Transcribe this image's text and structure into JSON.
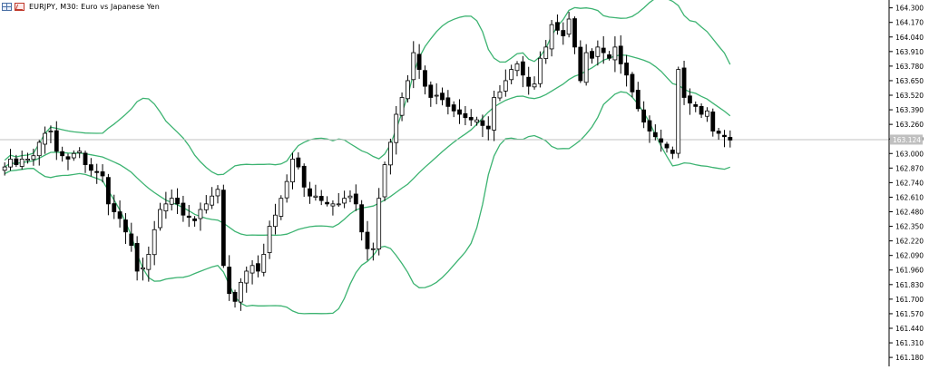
{
  "window": {
    "symbol_title": "EURJPY, M30:  Euro vs Japanese Yen",
    "icons": [
      "chart-grid-icon",
      "indicator-icon"
    ]
  },
  "colors": {
    "background": "#ffffff",
    "candle": "#000000",
    "bands": "#3cb371",
    "price_line": "#c0c0c0",
    "axis": "#000000",
    "price_label_bg": "#c0c0c0",
    "price_label_text": "#ffffff"
  },
  "chart_data": {
    "type": "candlestick",
    "indicator": "Bollinger Bands",
    "ylim": [
      161.1,
      164.37
    ],
    "y_ticks": [
      "164.300",
      "164.170",
      "164.040",
      "163.910",
      "163.780",
      "163.650",
      "163.520",
      "163.390",
      "163.260",
      "163.130",
      "163.000",
      "162.870",
      "162.740",
      "162.610",
      "162.480",
      "162.350",
      "162.220",
      "162.090",
      "161.960",
      "161.830",
      "161.700",
      "161.570",
      "161.440",
      "161.310",
      "161.180"
    ],
    "current_price": "163.124",
    "close": [
      162.88,
      162.95,
      162.9,
      162.95,
      162.95,
      162.98,
      163.1,
      163.18,
      163.2,
      163.02,
      162.98,
      162.95,
      163.0,
      163.02,
      162.9,
      162.85,
      162.83,
      162.8,
      162.55,
      162.48,
      162.42,
      162.3,
      162.18,
      161.95,
      161.98,
      162.1,
      162.32,
      162.5,
      162.55,
      162.6,
      162.55,
      162.45,
      162.43,
      162.4,
      162.5,
      162.55,
      162.62,
      162.68,
      162.0,
      161.75,
      161.68,
      161.85,
      161.95,
      162.0,
      161.95,
      162.1,
      162.35,
      162.45,
      162.6,
      162.75,
      162.95,
      162.88,
      162.7,
      162.62,
      162.62,
      162.58,
      162.55,
      162.55,
      162.55,
      162.6,
      162.62,
      162.55,
      162.3,
      162.15,
      162.15,
      162.6,
      162.9,
      163.1,
      163.35,
      163.5,
      163.65,
      163.9,
      163.75,
      163.6,
      163.5,
      163.52,
      163.48,
      163.42,
      163.38,
      163.35,
      163.32,
      163.3,
      163.3,
      163.25,
      163.22,
      163.5,
      163.55,
      163.65,
      163.75,
      163.8,
      163.7,
      163.6,
      163.62,
      163.85,
      163.95,
      164.15,
      164.1,
      164.05,
      164.2,
      163.95,
      163.65,
      163.9,
      163.85,
      163.95,
      163.9,
      163.85,
      163.95,
      163.8,
      163.7,
      163.55,
      163.4,
      163.28,
      163.2,
      163.15,
      163.1,
      163.05,
      163.0,
      163.75,
      163.5,
      163.45,
      163.42,
      163.35,
      163.38,
      163.2,
      163.18,
      163.15,
      163.12
    ]
  }
}
